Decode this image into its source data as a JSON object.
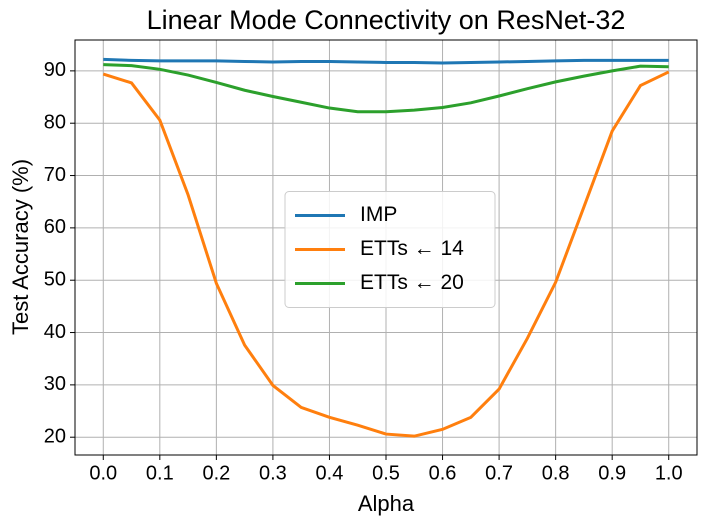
{
  "chart_data": {
    "type": "line",
    "title": "Linear Mode Connectivity on ResNet-32",
    "x_label": "Alpha",
    "y_label": "Test Accuracy (%)",
    "x": [
      0,
      0.05,
      0.1,
      0.15,
      0.2,
      0.25,
      0.3,
      0.35,
      0.4,
      0.45,
      0.5,
      0.55,
      0.6,
      0.65,
      0.7,
      0.75,
      0.8,
      0.85,
      0.9,
      0.95,
      1.0
    ],
    "series": [
      {
        "name": "IMP",
        "color": "#1f77b4",
        "values": [
          92.2,
          92.0,
          91.9,
          91.9,
          91.9,
          91.8,
          91.7,
          91.8,
          91.8,
          91.7,
          91.6,
          91.6,
          91.5,
          91.6,
          91.7,
          91.8,
          91.9,
          92.0,
          92.0,
          92.0,
          92.0
        ]
      },
      {
        "name": "ETTs ← 14",
        "color": "#ff7f0e",
        "values": [
          89.4,
          87.7,
          80.6,
          66.3,
          49.4,
          37.6,
          29.9,
          25.7,
          23.8,
          22.3,
          20.6,
          20.2,
          21.5,
          23.8,
          29.2,
          38.9,
          49.6,
          64.0,
          78.5,
          87.2,
          89.8
        ]
      },
      {
        "name": "ETTs ← 20",
        "color": "#2ca02c",
        "values": [
          91.2,
          91.0,
          90.3,
          89.2,
          87.8,
          86.3,
          85.1,
          84.0,
          82.9,
          82.2,
          82.2,
          82.5,
          83.0,
          83.9,
          85.2,
          86.6,
          87.9,
          89.0,
          90.0,
          90.9,
          90.8
        ]
      }
    ],
    "xlim": [
      -0.05,
      1.05
    ],
    "xticks": [
      {
        "value": 0,
        "label": "0.0"
      },
      0.1,
      0.2,
      0.3,
      0.4,
      0.5,
      0.6,
      0.7,
      0.8,
      0.9,
      {
        "value": 1,
        "label": "1.0"
      }
    ],
    "ylim": [
      16.6,
      95.9
    ],
    "yticks": [
      20,
      30,
      40,
      50,
      60,
      70,
      80,
      90
    ],
    "grid": true,
    "legend": "center"
  }
}
